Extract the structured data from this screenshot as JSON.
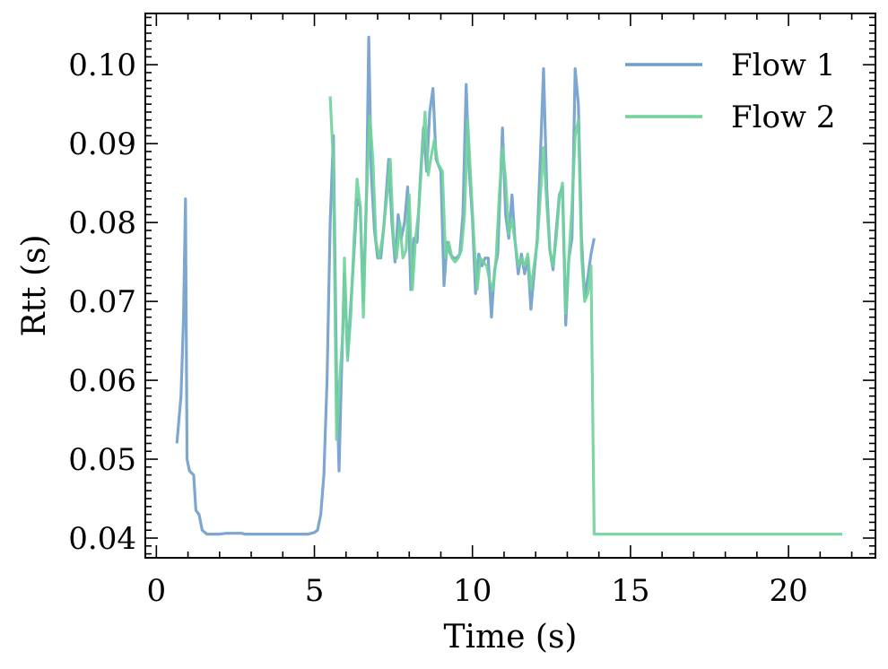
{
  "chart_data": {
    "type": "line",
    "title": "",
    "xlabel": "Time (s)",
    "ylabel": "Rtt (s)",
    "xlim": [
      -0.35,
      22.75
    ],
    "ylim": [
      0.0375,
      0.1065
    ],
    "xticks": [
      0,
      5,
      10,
      15,
      20
    ],
    "xtick_labels": [
      "0",
      "5",
      "10",
      "15",
      "20"
    ],
    "yticks": [
      0.04,
      0.05,
      0.06,
      0.07,
      0.08,
      0.09,
      0.1
    ],
    "ytick_labels": [
      "0.04",
      "0.05",
      "0.06",
      "0.07",
      "0.08",
      "0.09",
      "0.10"
    ],
    "grid": false,
    "legend_position": "top-right",
    "series": [
      {
        "name": "Flow 1",
        "color": "#6f9ccb",
        "points": [
          [
            0.65,
            0.052
          ],
          [
            0.78,
            0.058
          ],
          [
            0.86,
            0.068
          ],
          [
            0.92,
            0.083
          ],
          [
            0.97,
            0.05
          ],
          [
            1.05,
            0.0485
          ],
          [
            1.18,
            0.048
          ],
          [
            1.25,
            0.0435
          ],
          [
            1.35,
            0.043
          ],
          [
            1.45,
            0.041
          ],
          [
            1.6,
            0.0405
          ],
          [
            2.0,
            0.0405
          ],
          [
            2.2,
            0.0406
          ],
          [
            2.7,
            0.0406
          ],
          [
            2.8,
            0.0405
          ],
          [
            4.8,
            0.0405
          ],
          [
            5.0,
            0.0407
          ],
          [
            5.1,
            0.041
          ],
          [
            5.2,
            0.043
          ],
          [
            5.3,
            0.048
          ],
          [
            5.4,
            0.06
          ],
          [
            5.5,
            0.08
          ],
          [
            5.6,
            0.091
          ],
          [
            5.7,
            0.06
          ],
          [
            5.78,
            0.0485
          ],
          [
            5.85,
            0.06
          ],
          [
            5.95,
            0.0735
          ],
          [
            6.05,
            0.063
          ],
          [
            6.15,
            0.0695
          ],
          [
            6.25,
            0.076
          ],
          [
            6.35,
            0.083
          ],
          [
            6.45,
            0.082
          ],
          [
            6.55,
            0.07
          ],
          [
            6.65,
            0.084
          ],
          [
            6.72,
            0.1035
          ],
          [
            6.8,
            0.086
          ],
          [
            6.9,
            0.079
          ],
          [
            7.0,
            0.0755
          ],
          [
            7.1,
            0.0755
          ],
          [
            7.2,
            0.0795
          ],
          [
            7.35,
            0.088
          ],
          [
            7.45,
            0.08
          ],
          [
            7.55,
            0.075
          ],
          [
            7.65,
            0.081
          ],
          [
            7.75,
            0.078
          ],
          [
            7.85,
            0.08
          ],
          [
            7.95,
            0.0845
          ],
          [
            8.05,
            0.0715
          ],
          [
            8.15,
            0.078
          ],
          [
            8.25,
            0.0775
          ],
          [
            8.35,
            0.0855
          ],
          [
            8.45,
            0.092
          ],
          [
            8.55,
            0.0865
          ],
          [
            8.65,
            0.094
          ],
          [
            8.75,
            0.097
          ],
          [
            8.85,
            0.088
          ],
          [
            9.0,
            0.0865
          ],
          [
            9.1,
            0.072
          ],
          [
            9.2,
            0.0775
          ],
          [
            9.3,
            0.076
          ],
          [
            9.4,
            0.0755
          ],
          [
            9.5,
            0.0755
          ],
          [
            9.6,
            0.076
          ],
          [
            9.7,
            0.081
          ],
          [
            9.8,
            0.0975
          ],
          [
            9.9,
            0.0865
          ],
          [
            10.0,
            0.0805
          ],
          [
            10.1,
            0.071
          ],
          [
            10.2,
            0.076
          ],
          [
            10.3,
            0.0745
          ],
          [
            10.4,
            0.0755
          ],
          [
            10.5,
            0.0755
          ],
          [
            10.6,
            0.068
          ],
          [
            10.7,
            0.074
          ],
          [
            10.8,
            0.076
          ],
          [
            10.9,
            0.0865
          ],
          [
            10.95,
            0.092
          ],
          [
            11.05,
            0.081
          ],
          [
            11.15,
            0.078
          ],
          [
            11.25,
            0.0835
          ],
          [
            11.35,
            0.0775
          ],
          [
            11.45,
            0.0735
          ],
          [
            11.55,
            0.076
          ],
          [
            11.65,
            0.0735
          ],
          [
            11.75,
            0.0755
          ],
          [
            11.85,
            0.069
          ],
          [
            11.95,
            0.0735
          ],
          [
            12.05,
            0.078
          ],
          [
            12.15,
            0.0885
          ],
          [
            12.25,
            0.0995
          ],
          [
            12.35,
            0.0845
          ],
          [
            12.45,
            0.0765
          ],
          [
            12.55,
            0.074
          ],
          [
            12.65,
            0.079
          ],
          [
            12.75,
            0.0835
          ],
          [
            12.85,
            0.0845
          ],
          [
            12.95,
            0.067
          ],
          [
            13.05,
            0.0755
          ],
          [
            13.15,
            0.078
          ],
          [
            13.25,
            0.0995
          ],
          [
            13.35,
            0.095
          ],
          [
            13.45,
            0.078
          ],
          [
            13.55,
            0.0705
          ],
          [
            13.65,
            0.073
          ],
          [
            13.75,
            0.076
          ],
          [
            13.85,
            0.078
          ]
        ]
      },
      {
        "name": "Flow 2",
        "color": "#6fd39a",
        "points": [
          [
            5.5,
            0.096
          ],
          [
            5.6,
            0.0875
          ],
          [
            5.7,
            0.0525
          ],
          [
            5.8,
            0.06
          ],
          [
            5.9,
            0.066
          ],
          [
            5.95,
            0.0755
          ],
          [
            6.05,
            0.0625
          ],
          [
            6.15,
            0.068
          ],
          [
            6.25,
            0.0775
          ],
          [
            6.35,
            0.0855
          ],
          [
            6.45,
            0.082
          ],
          [
            6.55,
            0.068
          ],
          [
            6.65,
            0.0835
          ],
          [
            6.75,
            0.0935
          ],
          [
            6.85,
            0.088
          ],
          [
            6.95,
            0.0775
          ],
          [
            7.05,
            0.0755
          ],
          [
            7.15,
            0.078
          ],
          [
            7.3,
            0.0835
          ],
          [
            7.4,
            0.088
          ],
          [
            7.5,
            0.078
          ],
          [
            7.6,
            0.0755
          ],
          [
            7.7,
            0.08
          ],
          [
            7.8,
            0.0755
          ],
          [
            7.9,
            0.0765
          ],
          [
            8.0,
            0.0835
          ],
          [
            8.1,
            0.0715
          ],
          [
            8.2,
            0.078
          ],
          [
            8.3,
            0.0815
          ],
          [
            8.4,
            0.088
          ],
          [
            8.5,
            0.094
          ],
          [
            8.6,
            0.086
          ],
          [
            8.7,
            0.0885
          ],
          [
            8.8,
            0.0905
          ],
          [
            8.9,
            0.0875
          ],
          [
            9.05,
            0.0865
          ],
          [
            9.15,
            0.0755
          ],
          [
            9.25,
            0.0775
          ],
          [
            9.35,
            0.0755
          ],
          [
            9.45,
            0.075
          ],
          [
            9.55,
            0.0755
          ],
          [
            9.65,
            0.0765
          ],
          [
            9.75,
            0.081
          ],
          [
            9.85,
            0.093
          ],
          [
            9.95,
            0.085
          ],
          [
            10.05,
            0.0775
          ],
          [
            10.15,
            0.0715
          ],
          [
            10.25,
            0.0755
          ],
          [
            10.35,
            0.075
          ],
          [
            10.45,
            0.0745
          ],
          [
            10.55,
            0.0725
          ],
          [
            10.65,
            0.0715
          ],
          [
            10.75,
            0.0755
          ],
          [
            10.85,
            0.0835
          ],
          [
            10.95,
            0.0895
          ],
          [
            11.05,
            0.0855
          ],
          [
            11.15,
            0.0785
          ],
          [
            11.25,
            0.0805
          ],
          [
            11.35,
            0.0775
          ],
          [
            11.45,
            0.0745
          ],
          [
            11.55,
            0.0755
          ],
          [
            11.65,
            0.0745
          ],
          [
            11.75,
            0.076
          ],
          [
            11.85,
            0.0715
          ],
          [
            11.95,
            0.0745
          ],
          [
            12.05,
            0.0775
          ],
          [
            12.15,
            0.0835
          ],
          [
            12.25,
            0.0895
          ],
          [
            12.35,
            0.0825
          ],
          [
            12.45,
            0.0765
          ],
          [
            12.55,
            0.0745
          ],
          [
            12.65,
            0.078
          ],
          [
            12.75,
            0.083
          ],
          [
            12.85,
            0.085
          ],
          [
            12.95,
            0.0685
          ],
          [
            13.05,
            0.0755
          ],
          [
            13.15,
            0.082
          ],
          [
            13.25,
            0.091
          ],
          [
            13.35,
            0.093
          ],
          [
            13.45,
            0.076
          ],
          [
            13.55,
            0.07
          ],
          [
            13.65,
            0.071
          ],
          [
            13.75,
            0.0745
          ],
          [
            13.85,
            0.0405
          ],
          [
            21.7,
            0.0405
          ]
        ]
      }
    ]
  }
}
